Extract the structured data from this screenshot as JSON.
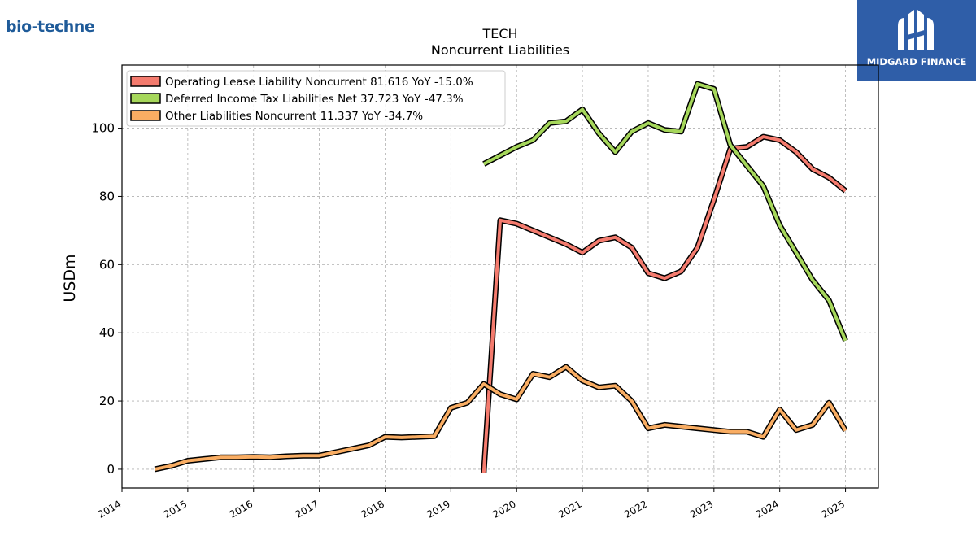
{
  "header": {
    "company_logo": "bio-techne",
    "brand_logo_text": "MIDGARD FINANCE"
  },
  "colors": {
    "operating_lease": "#f47b6e",
    "deferred_tax": "#a6d75b",
    "other_liabilities": "#f9ad63",
    "grid": "#b0b0b0",
    "brand_bg": "#2f5ea8"
  },
  "chart_data": {
    "type": "line",
    "title": "TECH",
    "subtitle": "Noncurrent  Liabilities",
    "ylabel": "USDm",
    "xlabel": "",
    "xlim": [
      2014.0,
      2025.5
    ],
    "ylim": [
      -5.5,
      118.5
    ],
    "xticks": [
      "2014",
      "2015",
      "2016",
      "2017",
      "2018",
      "2019",
      "2020",
      "2021",
      "2022",
      "2023",
      "2024",
      "2025"
    ],
    "yticks": [
      0,
      20,
      40,
      60,
      80,
      100
    ],
    "grid": true,
    "legend_position": "top-left",
    "series": [
      {
        "name": "Operating Lease Liability Noncurrent  81.616 YoY -15.0%",
        "color": "#f47b6e",
        "x": [
          2019.5,
          2019.75,
          2020.0,
          2020.25,
          2020.5,
          2020.75,
          2021.0,
          2021.25,
          2021.5,
          2021.75,
          2022.0,
          2022.25,
          2022.5,
          2022.75,
          2023.0,
          2023.25,
          2023.5,
          2023.75,
          2024.0,
          2024.25,
          2024.5,
          2024.75,
          2025.0
        ],
        "y": [
          -1.0,
          73.0,
          72.0,
          70.0,
          68.0,
          66.0,
          63.5,
          67.0,
          68.0,
          65.0,
          57.5,
          56.0,
          58.0,
          65.0,
          79.0,
          94.0,
          94.5,
          97.5,
          96.5,
          93.0,
          88.0,
          85.5,
          81.6
        ]
      },
      {
        "name": "Deferred Income Tax Liabilities Net  37.723 YoY -47.3%",
        "color": "#a6d75b",
        "x": [
          2019.5,
          2019.75,
          2020.0,
          2020.25,
          2020.5,
          2020.75,
          2021.0,
          2021.25,
          2021.5,
          2021.75,
          2022.0,
          2022.25,
          2022.5,
          2022.75,
          2023.0,
          2023.25,
          2023.5,
          2023.75,
          2024.0,
          2024.25,
          2024.5,
          2024.75,
          2025.0
        ],
        "y": [
          89.5,
          92.0,
          94.5,
          96.5,
          101.5,
          102.0,
          105.5,
          98.5,
          93.0,
          99.0,
          101.5,
          99.5,
          99.0,
          113.0,
          111.5,
          95.0,
          89.0,
          83.0,
          71.5,
          63.5,
          55.5,
          49.5,
          37.7
        ]
      },
      {
        "name": "Other Liabilities Noncurrent  11.337 YoY -34.7%",
        "color": "#f9ad63",
        "x": [
          2014.5,
          2014.75,
          2015.0,
          2015.25,
          2015.5,
          2015.75,
          2016.0,
          2016.25,
          2016.5,
          2016.75,
          2017.0,
          2017.25,
          2017.5,
          2017.75,
          2018.0,
          2018.25,
          2018.5,
          2018.75,
          2019.0,
          2019.25,
          2019.5,
          2019.75,
          2020.0,
          2020.25,
          2020.5,
          2020.75,
          2021.0,
          2021.25,
          2021.5,
          2021.75,
          2022.0,
          2022.25,
          2022.5,
          2022.75,
          2023.0,
          2023.25,
          2023.5,
          2023.75,
          2024.0,
          2024.25,
          2024.5,
          2024.75,
          2025.0
        ],
        "y": [
          0.0,
          1.0,
          2.5,
          3.0,
          3.5,
          3.5,
          3.6,
          3.5,
          3.8,
          4.0,
          4.0,
          5.0,
          6.0,
          7.0,
          9.5,
          9.3,
          9.5,
          9.7,
          18.0,
          19.5,
          25.0,
          22.0,
          20.5,
          28.0,
          27.0,
          30.0,
          26.0,
          24.0,
          24.5,
          20.0,
          12.0,
          13.0,
          12.5,
          12.0,
          11.5,
          11.0,
          11.0,
          9.5,
          17.5,
          11.5,
          13.0,
          19.5,
          11.3
        ]
      }
    ]
  }
}
